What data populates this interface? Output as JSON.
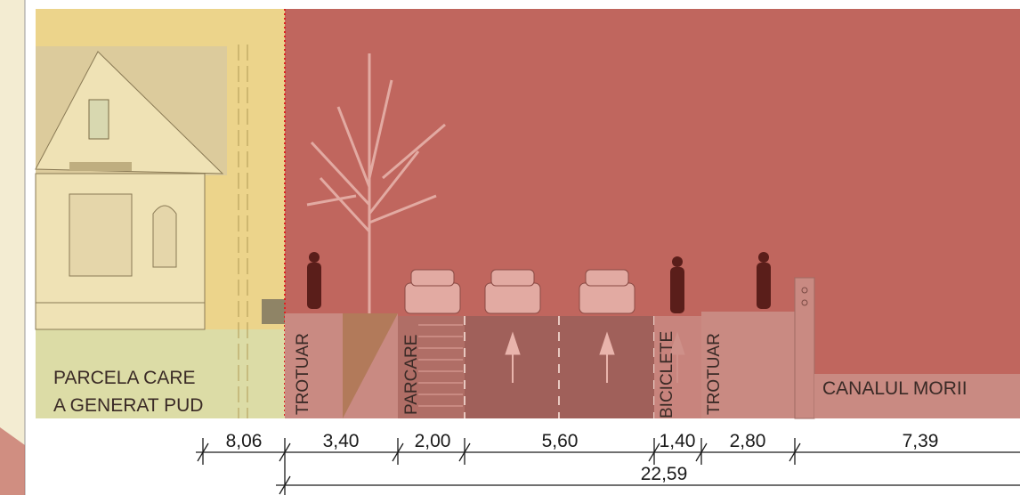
{
  "section": {
    "parcel_label": [
      "PARCELA CARE",
      "A GENERAT PUD"
    ],
    "zones": [
      "TROTUAR",
      "PARCARE",
      "BICICLETE",
      "TROTUAR"
    ],
    "canal_label": "CANALUL MORII",
    "dimensions": [
      "8,06",
      "3,40",
      "2,00",
      "5,60",
      "1,40",
      "2,80",
      "7,39"
    ],
    "total_dimension": "22,59"
  }
}
